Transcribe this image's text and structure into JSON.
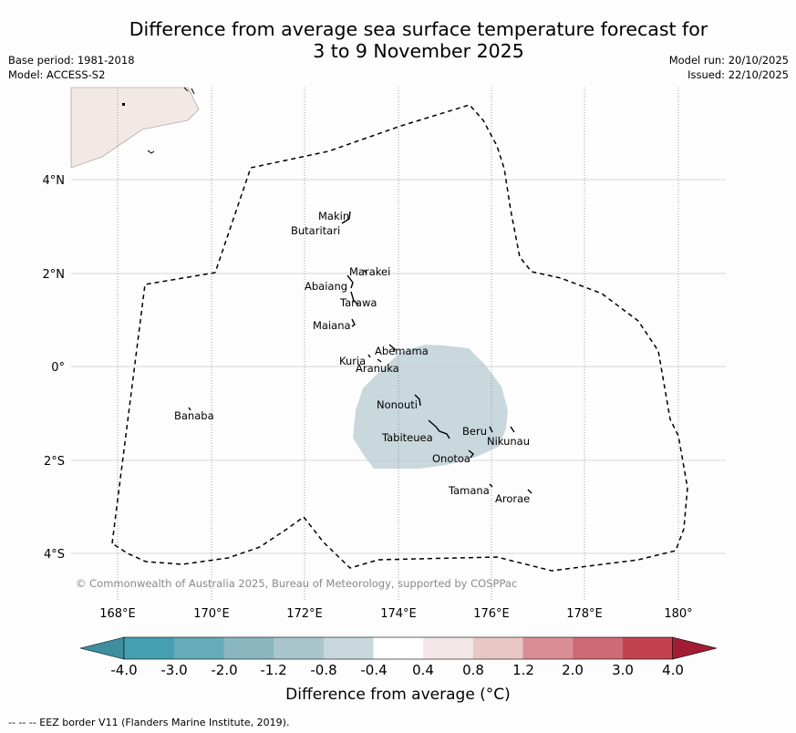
{
  "title": {
    "line1": "Difference from average sea surface temperature forecast for",
    "line2": "3 to 9 November 2025"
  },
  "meta": {
    "base_period": "Base period: 1981-2018",
    "model": "Model: ACCESS-S2",
    "model_run": "Model run: 20/10/2025",
    "issued": "Issued: 22/10/2025"
  },
  "map": {
    "lat_labels": [
      "4°N",
      "2°N",
      "0°",
      "2°S",
      "4°S"
    ],
    "lon_labels": [
      "168°E",
      "170°E",
      "172°E",
      "174°E",
      "176°E",
      "178°E",
      "180°"
    ],
    "copyright": "© Commonwealth of Australia 2025, Bureau of Meteorology, supported by COSPPac",
    "islands": [
      "Makin",
      "Butaritari",
      "Marakei",
      "Abaiang",
      "Tarawa",
      "Maiana",
      "Abemama",
      "Kuria",
      "Aranuka",
      "Nonouti",
      "Tabiteuea",
      "Beru",
      "Nikunau",
      "Onotoa",
      "Tamana",
      "Arorae",
      "Banaba"
    ],
    "anomaly_colors": {
      "minus_0_8_to_minus_0_4": "#c8d8dd",
      "land": "#f2e8e6"
    }
  },
  "colorbar": {
    "ticks": [
      "-4.0",
      "-3.0",
      "-2.0",
      "-1.2",
      "-0.8",
      "-0.4",
      "0.4",
      "0.8",
      "1.2",
      "2.0",
      "3.0",
      "4.0"
    ],
    "colors": [
      "#3e8e9c",
      "#45a0b1",
      "#66abb8",
      "#89b6bf",
      "#a9c6cc",
      "#c8d8dd",
      "#ffffff",
      "#f2e7e6",
      "#e8c7c4",
      "#d98e96",
      "#cd6a74",
      "#c2434f",
      "#a21c34"
    ],
    "label": "Difference from average (°C)"
  },
  "footnote": "--  --  -- EEZ border V11 (Flanders Marine Institute, 2019)."
}
